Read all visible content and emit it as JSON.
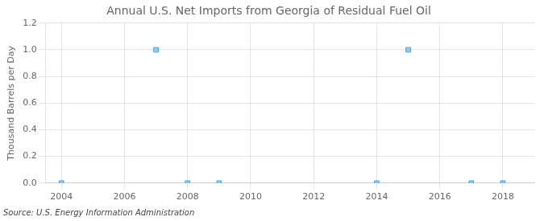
{
  "chart_data": {
    "type": "scatter",
    "title": "Annual U.S. Net Imports from Georgia of Residual Fuel Oil",
    "ylabel": "Thousand Barrels per Day",
    "annotation": "Source: U.S. Energy Information Administration",
    "x": [
      2004,
      2007,
      2008,
      2009,
      2014,
      2015,
      2017,
      2018
    ],
    "values": [
      0.0,
      1.0,
      0.0,
      0.0,
      0.0,
      1.0,
      0.0,
      0.0
    ],
    "marker": "square",
    "xlim": [
      2003.5,
      2019.0
    ],
    "xticks": [
      2004,
      2006,
      2008,
      2010,
      2012,
      2014,
      2016,
      2018
    ],
    "ylim": [
      0.0,
      1.2
    ],
    "yticks": [
      {
        "value": 0.0,
        "label": "0.0"
      },
      {
        "value": 0.2,
        "label": "0.2"
      },
      {
        "value": 0.4,
        "label": "0.4"
      },
      {
        "value": 0.6,
        "label": "0.6"
      },
      {
        "value": 0.8,
        "label": "0.8"
      },
      {
        "value": 1.0,
        "label": "1.0"
      },
      {
        "value": 1.2,
        "label": "1.2"
      }
    ],
    "grid": true
  }
}
